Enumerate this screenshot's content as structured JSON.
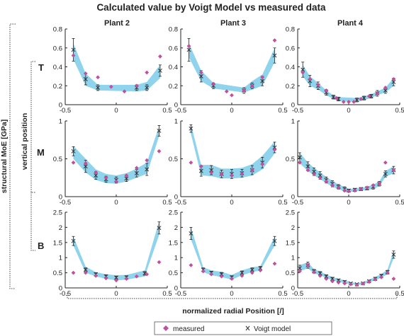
{
  "chart_data": {
    "type": "scatter",
    "title": "Calculated value by Voigt Model vs  measured data",
    "xlabel": "normalized radial Position [/]",
    "ylabel": "structural MoE [GPa]",
    "row_axis_label": "vertical position",
    "columns": [
      "Plant 2",
      "Plant 3",
      "Plant 4"
    ],
    "rows": [
      "T",
      "M",
      "B"
    ],
    "xlim": [
      -0.5,
      0.5
    ],
    "xticks": [
      -0.5,
      0,
      0.5
    ],
    "xtick_labels": [
      "-0.5",
      "0",
      "0.5"
    ],
    "row_ylims": [
      [
        0,
        0.8
      ],
      [
        0,
        1
      ],
      [
        0,
        2.5
      ]
    ],
    "row_yticks": [
      [
        0,
        0.2,
        0.4,
        0.6,
        0.8
      ],
      [
        0,
        0.5,
        1
      ],
      [
        0,
        0.5,
        1,
        1.5,
        2,
        2.5
      ]
    ],
    "row_ytick_labels": [
      [
        "0",
        "0.2",
        "0.4",
        "0.6",
        "0.8"
      ],
      [
        "0",
        "0.5",
        "1"
      ],
      [
        "0",
        "0.5",
        "1",
        "1.5",
        "2",
        "2.5"
      ]
    ],
    "legend": {
      "position": "bottom",
      "entries": [
        "measured",
        "Voigt model"
      ]
    },
    "colors": {
      "measured": "#c0509e",
      "voigt": "#333333",
      "band": "#8fd3ec"
    },
    "panels": [
      {
        "row": "T",
        "column": "Plant 2",
        "measured": [
          [
            -0.42,
            0.52
          ],
          [
            -0.3,
            0.33
          ],
          [
            -0.18,
            0.29
          ],
          [
            -0.05,
            0.19
          ],
          [
            0.08,
            0.14
          ],
          [
            0.2,
            0.2
          ],
          [
            0.3,
            0.34
          ],
          [
            0.43,
            0.51
          ]
        ],
        "voigt": [
          [
            -0.42,
            0.58,
            0.12
          ],
          [
            -0.3,
            0.27,
            0.06
          ],
          [
            -0.18,
            0.18,
            0.03
          ],
          [
            0.2,
            0.18,
            0.03
          ],
          [
            0.3,
            0.18,
            0.03
          ],
          [
            0.43,
            0.36,
            0.06
          ]
        ],
        "band_low": [
          0.48,
          0.2,
          0.15,
          0.14,
          0.15,
          0.28
        ],
        "band_high": [
          0.65,
          0.33,
          0.21,
          0.21,
          0.24,
          0.42
        ]
      },
      {
        "row": "T",
        "column": "Plant 3",
        "measured": [
          [
            -0.42,
            0.62
          ],
          [
            -0.3,
            0.34
          ],
          [
            -0.18,
            0.22
          ],
          [
            -0.05,
            0.14
          ],
          [
            0.0,
            0.1
          ],
          [
            0.12,
            0.15
          ],
          [
            0.2,
            0.2
          ],
          [
            0.3,
            0.29
          ],
          [
            0.42,
            0.68
          ]
        ],
        "voigt": [
          [
            -0.42,
            0.58,
            0.12
          ],
          [
            -0.3,
            0.3,
            0.06
          ],
          [
            -0.18,
            0.2,
            0.03
          ],
          [
            0.12,
            0.15,
            0.03
          ],
          [
            0.2,
            0.2,
            0.03
          ],
          [
            0.3,
            0.25,
            0.05
          ],
          [
            0.42,
            0.52,
            0.08
          ]
        ],
        "band_low": [
          0.5,
          0.25,
          0.17,
          0.13,
          0.16,
          0.2,
          0.45
        ],
        "band_high": [
          0.65,
          0.36,
          0.23,
          0.18,
          0.25,
          0.32,
          0.6
        ]
      },
      {
        "row": "T",
        "column": "Plant 4",
        "measured": [
          [
            -0.45,
            0.34
          ],
          [
            -0.38,
            0.27
          ],
          [
            -0.3,
            0.21
          ],
          [
            -0.22,
            0.15
          ],
          [
            -0.12,
            0.07
          ],
          [
            -0.05,
            0.03
          ],
          [
            0.0,
            0.03
          ],
          [
            0.05,
            0.03
          ],
          [
            0.12,
            0.06
          ],
          [
            0.2,
            0.09
          ],
          [
            0.28,
            0.12
          ],
          [
            0.36,
            0.18
          ],
          [
            0.44,
            0.27
          ]
        ],
        "voigt": [
          [
            -0.45,
            0.37,
            0.08
          ],
          [
            -0.38,
            0.25,
            0.06
          ],
          [
            -0.3,
            0.2,
            0.04
          ],
          [
            -0.22,
            0.13,
            0.03
          ],
          [
            -0.15,
            0.08,
            0.02
          ],
          [
            -0.1,
            0.06,
            0.02
          ],
          [
            0.08,
            0.05,
            0.02
          ],
          [
            0.15,
            0.07,
            0.02
          ],
          [
            0.22,
            0.09,
            0.02
          ],
          [
            0.28,
            0.12,
            0.03
          ],
          [
            0.36,
            0.15,
            0.03
          ],
          [
            0.44,
            0.24,
            0.04
          ]
        ],
        "band_low": [
          0.3,
          0.2,
          0.16,
          0.1,
          0.06,
          0.04,
          0.03,
          0.05,
          0.07,
          0.1,
          0.13,
          0.2
        ],
        "band_high": [
          0.42,
          0.3,
          0.23,
          0.15,
          0.1,
          0.08,
          0.07,
          0.09,
          0.11,
          0.14,
          0.18,
          0.28
        ]
      },
      {
        "row": "M",
        "column": "Plant 2",
        "measured": [
          [
            -0.42,
            0.45
          ],
          [
            -0.3,
            0.44
          ],
          [
            -0.2,
            0.32
          ],
          [
            -0.1,
            0.25
          ],
          [
            0.0,
            0.2
          ],
          [
            0.1,
            0.28
          ],
          [
            0.2,
            0.38
          ],
          [
            0.3,
            0.48
          ],
          [
            0.42,
            0.6
          ]
        ],
        "voigt": [
          [
            -0.42,
            0.6,
            0.06
          ],
          [
            -0.3,
            0.4,
            0.08
          ],
          [
            -0.2,
            0.28,
            0.05
          ],
          [
            -0.1,
            0.23,
            0.04
          ],
          [
            0.0,
            0.22,
            0.04
          ],
          [
            0.1,
            0.24,
            0.04
          ],
          [
            0.2,
            0.31,
            0.05
          ],
          [
            0.3,
            0.36,
            0.08
          ],
          [
            0.42,
            0.87,
            0.07
          ]
        ],
        "band_low": [
          0.5,
          0.32,
          0.22,
          0.18,
          0.17,
          0.2,
          0.25,
          0.3,
          0.8
        ],
        "band_high": [
          0.67,
          0.5,
          0.36,
          0.3,
          0.28,
          0.31,
          0.37,
          0.45,
          0.93
        ]
      },
      {
        "row": "M",
        "column": "Plant 3",
        "measured": [
          [
            -0.4,
            0.45
          ],
          [
            -0.3,
            0.4
          ],
          [
            -0.2,
            0.32
          ],
          [
            -0.1,
            0.3
          ],
          [
            0.0,
            0.28
          ],
          [
            0.1,
            0.3
          ],
          [
            0.2,
            0.35
          ],
          [
            0.3,
            0.43
          ],
          [
            0.42,
            0.62
          ]
        ],
        "voigt": [
          [
            -0.4,
            0.9,
            0.05
          ],
          [
            -0.3,
            0.34,
            0.07
          ],
          [
            -0.2,
            0.35,
            0.06
          ],
          [
            -0.1,
            0.3,
            0.05
          ],
          [
            0.0,
            0.3,
            0.06
          ],
          [
            0.1,
            0.31,
            0.05
          ],
          [
            0.2,
            0.35,
            0.06
          ],
          [
            0.3,
            0.45,
            0.07
          ],
          [
            0.42,
            0.65,
            0.07
          ]
        ],
        "band_low": [
          0.83,
          0.28,
          0.27,
          0.24,
          0.24,
          0.25,
          0.28,
          0.36,
          0.57
        ],
        "band_high": [
          0.96,
          0.42,
          0.42,
          0.37,
          0.37,
          0.38,
          0.43,
          0.54,
          0.73
        ]
      },
      {
        "row": "M",
        "column": "Plant 4",
        "measured": [
          [
            -0.48,
            0.45
          ],
          [
            -0.4,
            0.35
          ],
          [
            -0.34,
            0.3
          ],
          [
            -0.28,
            0.25
          ],
          [
            -0.22,
            0.2
          ],
          [
            -0.16,
            0.15
          ],
          [
            -0.1,
            0.12
          ],
          [
            -0.04,
            0.08
          ],
          [
            0.0,
            0.07
          ],
          [
            0.06,
            0.08
          ],
          [
            0.12,
            0.1
          ],
          [
            0.18,
            0.12
          ],
          [
            0.24,
            0.15
          ],
          [
            0.3,
            0.17
          ],
          [
            0.36,
            0.45
          ],
          [
            0.44,
            0.35
          ]
        ],
        "voigt": [
          [
            -0.48,
            0.52,
            0.06
          ],
          [
            -0.4,
            0.4,
            0.06
          ],
          [
            -0.34,
            0.33,
            0.05
          ],
          [
            -0.28,
            0.28,
            0.05
          ],
          [
            -0.22,
            0.22,
            0.04
          ],
          [
            -0.16,
            0.17,
            0.04
          ],
          [
            -0.1,
            0.13,
            0.03
          ],
          [
            -0.04,
            0.1,
            0.03
          ],
          [
            0.0,
            0.08,
            0.02
          ],
          [
            0.06,
            0.09,
            0.02
          ],
          [
            0.12,
            0.1,
            0.02
          ],
          [
            0.18,
            0.11,
            0.02
          ],
          [
            0.24,
            0.13,
            0.03
          ],
          [
            0.3,
            0.17,
            0.03
          ],
          [
            0.36,
            0.3,
            0.04
          ],
          [
            0.44,
            0.35,
            0.05
          ]
        ],
        "band_low": [
          0.44,
          0.34,
          0.28,
          0.23,
          0.18,
          0.13,
          0.1,
          0.07,
          0.06,
          0.07,
          0.08,
          0.09,
          0.1,
          0.14,
          0.26,
          0.31
        ],
        "band_high": [
          0.58,
          0.45,
          0.38,
          0.32,
          0.26,
          0.21,
          0.16,
          0.13,
          0.1,
          0.11,
          0.12,
          0.13,
          0.16,
          0.2,
          0.34,
          0.4
        ]
      },
      {
        "row": "B",
        "column": "Plant 2",
        "measured": [
          [
            -0.42,
            0.5
          ],
          [
            -0.3,
            0.5
          ],
          [
            -0.2,
            0.4
          ],
          [
            -0.1,
            0.32
          ],
          [
            0.0,
            0.25
          ],
          [
            0.1,
            0.3
          ],
          [
            0.2,
            0.38
          ],
          [
            0.3,
            0.45
          ],
          [
            0.42,
            0.85
          ]
        ],
        "voigt": [
          [
            -0.42,
            1.55,
            0.15
          ],
          [
            -0.3,
            0.6,
            0.06
          ],
          [
            -0.2,
            0.45,
            0.05
          ],
          [
            -0.1,
            0.38,
            0.05
          ],
          [
            0.0,
            0.34,
            0.05
          ],
          [
            0.1,
            0.35,
            0.05
          ],
          [
            0.28,
            0.48,
            0.06
          ],
          [
            0.42,
            1.98,
            0.2
          ]
        ],
        "band_low": [
          1.4,
          0.5,
          0.38,
          0.3,
          0.25,
          0.27,
          0.38,
          1.75
        ],
        "band_high": [
          1.7,
          0.7,
          0.52,
          0.45,
          0.42,
          0.43,
          0.58,
          2.2
        ]
      },
      {
        "row": "B",
        "column": "Plant 3",
        "measured": [
          [
            -0.4,
            0.75
          ],
          [
            -0.28,
            0.55
          ],
          [
            -0.2,
            0.45
          ],
          [
            -0.1,
            0.38
          ],
          [
            0.0,
            0.3
          ],
          [
            0.1,
            0.4
          ],
          [
            0.2,
            0.5
          ],
          [
            0.28,
            0.58
          ],
          [
            0.42,
            0.8
          ]
        ],
        "voigt": [
          [
            -0.4,
            1.8,
            0.2
          ],
          [
            -0.28,
            0.6,
            0.06
          ],
          [
            -0.2,
            0.5,
            0.05
          ],
          [
            -0.1,
            0.45,
            0.06
          ],
          [
            0.0,
            0.35,
            0.05
          ],
          [
            0.1,
            0.5,
            0.06
          ],
          [
            0.2,
            0.6,
            0.06
          ],
          [
            0.28,
            0.65,
            0.06
          ],
          [
            0.42,
            1.55,
            0.15
          ]
        ],
        "band_low": [
          1.6,
          0.52,
          0.42,
          0.36,
          0.27,
          0.42,
          0.52,
          0.58,
          1.4
        ],
        "band_high": [
          2.0,
          0.68,
          0.58,
          0.53,
          0.43,
          0.58,
          0.68,
          0.72,
          1.7
        ]
      },
      {
        "row": "B",
        "column": "Plant 4",
        "measured": [
          [
            -0.48,
            0.55
          ],
          [
            -0.4,
            0.75
          ],
          [
            -0.34,
            0.52
          ],
          [
            -0.28,
            0.4
          ],
          [
            -0.22,
            0.3
          ],
          [
            -0.16,
            0.22
          ],
          [
            -0.1,
            0.18
          ],
          [
            -0.04,
            0.15
          ],
          [
            0.02,
            0.12
          ],
          [
            0.08,
            0.1
          ],
          [
            0.14,
            0.14
          ],
          [
            0.2,
            0.2
          ],
          [
            0.26,
            0.28
          ],
          [
            0.32,
            0.35
          ],
          [
            0.38,
            0.5
          ],
          [
            0.44,
            0.3
          ]
        ],
        "voigt": [
          [
            -0.48,
            0.65,
            0.1
          ],
          [
            -0.4,
            0.75,
            0.1
          ],
          [
            -0.34,
            0.55,
            0.06
          ],
          [
            -0.28,
            0.48,
            0.06
          ],
          [
            -0.22,
            0.38,
            0.05
          ],
          [
            -0.16,
            0.3,
            0.05
          ],
          [
            -0.1,
            0.25,
            0.04
          ],
          [
            -0.04,
            0.2,
            0.04
          ],
          [
            0.02,
            0.15,
            0.03
          ],
          [
            0.08,
            0.12,
            0.03
          ],
          [
            0.14,
            0.15,
            0.03
          ],
          [
            0.2,
            0.22,
            0.04
          ],
          [
            0.26,
            0.3,
            0.05
          ],
          [
            0.32,
            0.4,
            0.05
          ],
          [
            0.38,
            0.52,
            0.06
          ],
          [
            0.44,
            1.1,
            0.12
          ]
        ],
        "band_low": [
          0.55,
          0.65,
          0.48,
          0.42,
          0.33,
          0.25,
          0.2,
          0.16,
          0.12,
          0.1,
          0.12,
          0.18,
          0.25,
          0.34,
          0.45,
          0.98
        ],
        "band_high": [
          0.75,
          0.85,
          0.62,
          0.55,
          0.44,
          0.36,
          0.3,
          0.25,
          0.19,
          0.16,
          0.19,
          0.27,
          0.36,
          0.46,
          0.6,
          1.22
        ]
      }
    ]
  }
}
